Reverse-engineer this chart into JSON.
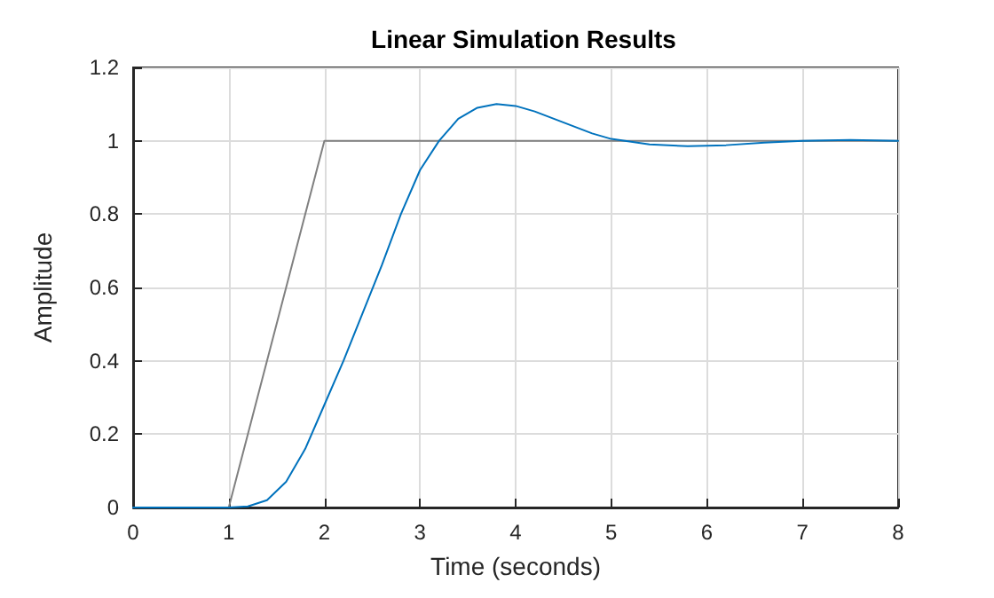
{
  "chart_data": {
    "type": "line",
    "title": "Linear Simulation Results",
    "xlabel": "Time (seconds)",
    "ylabel": "Amplitude",
    "series": [
      {
        "color": "#808080",
        "x": [
          0,
          1,
          2,
          8
        ],
        "values": [
          0,
          0,
          1,
          1
        ]
      },
      {
        "color": "#0072bd",
        "x": [
          0,
          1,
          1.2,
          1.4,
          1.6,
          1.8,
          2,
          2.2,
          2.4,
          2.6,
          2.8,
          3,
          3.2,
          3.4,
          3.6,
          3.8,
          4,
          4.2,
          4.4,
          4.6,
          4.8,
          5,
          5.4,
          5.8,
          6.2,
          6.6,
          7,
          7.5,
          8
        ],
        "values": [
          0,
          0,
          0.003,
          0.02,
          0.07,
          0.16,
          0.28,
          0.4,
          0.53,
          0.66,
          0.8,
          0.92,
          1,
          1.06,
          1.09,
          1.1,
          1.095,
          1.08,
          1.06,
          1.04,
          1.02,
          1.005,
          0.99,
          0.985,
          0.988,
          0.995,
          1,
          1.002,
          1
        ]
      }
    ],
    "xlim": [
      0,
      8
    ],
    "xticks": [
      0,
      1,
      2,
      3,
      4,
      5,
      6,
      7,
      8
    ],
    "ylim": [
      0,
      1.2
    ],
    "yticks": [
      0,
      0.2,
      0.4,
      0.6,
      0.8,
      1,
      1.2
    ],
    "grid": true,
    "marker": "none",
    "line_style": "solid"
  }
}
